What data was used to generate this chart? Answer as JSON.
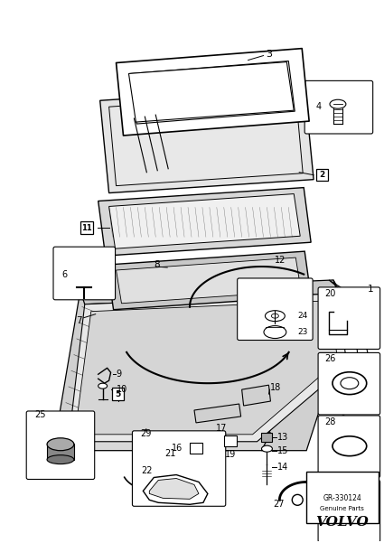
{
  "bg_color": "#ffffff",
  "line_color": "#000000",
  "fig_width": 4.25,
  "fig_height": 6.01,
  "dpi": 100,
  "volvo_text": "VOLVO",
  "genuine_parts": "Genuine Parts",
  "part_number": "GR-330124"
}
